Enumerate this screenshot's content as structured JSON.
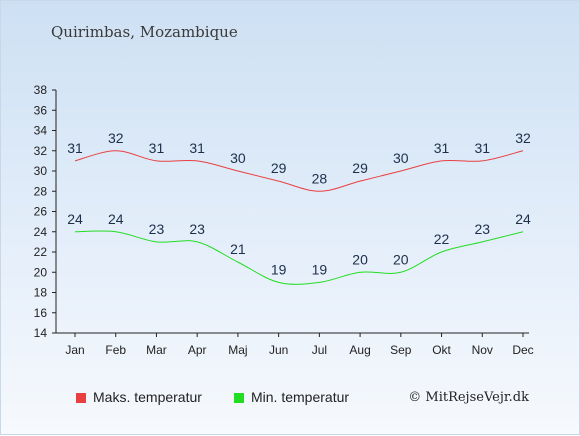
{
  "title": "Quirimbas, Mozambique",
  "copyright": "© MitRejseVejr.dk",
  "chart_data": {
    "type": "line",
    "categories": [
      "Jan",
      "Feb",
      "Mar",
      "Apr",
      "Maj",
      "Jun",
      "Jul",
      "Aug",
      "Sep",
      "Okt",
      "Nov",
      "Dec"
    ],
    "ylim": [
      14,
      38
    ],
    "yticks": [
      14,
      16,
      18,
      20,
      22,
      24,
      26,
      28,
      30,
      32,
      34,
      36,
      38
    ],
    "series": [
      {
        "name": "Maks. temperatur",
        "color": "#e84040",
        "values": [
          31,
          32,
          31,
          31,
          30,
          29,
          28,
          29,
          30,
          31,
          31,
          32
        ]
      },
      {
        "name": "Min. temperatur",
        "color": "#22dd22",
        "values": [
          24,
          24,
          23,
          23,
          21,
          19,
          19,
          20,
          20,
          22,
          23,
          24
        ]
      }
    ],
    "grid": false,
    "legend": "bottom"
  }
}
